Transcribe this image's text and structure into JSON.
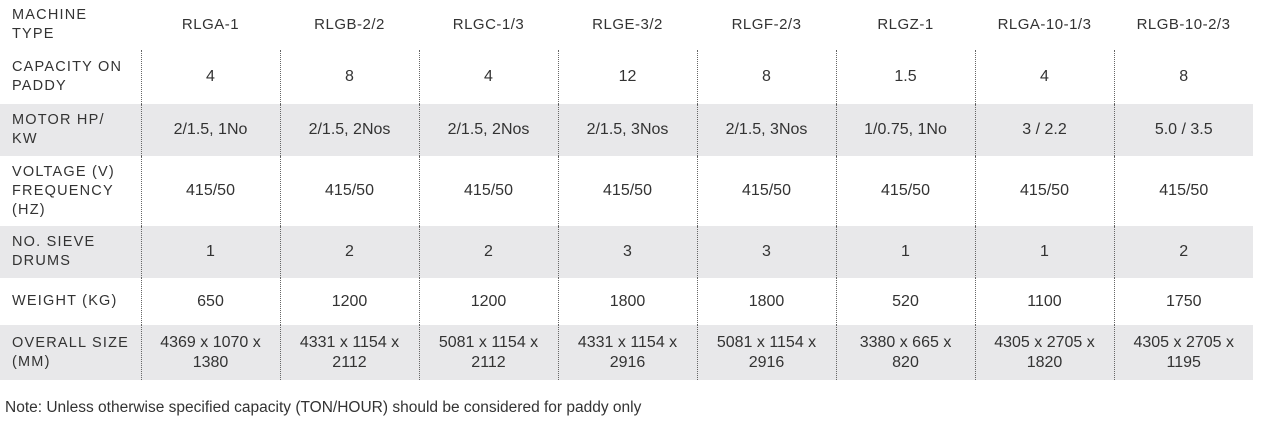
{
  "table": {
    "header": [
      "MACHINE TYPE",
      "RLGA-1",
      "RLGB-2/2",
      "RLGC-1/3",
      "RLGE-3/2",
      "RLGF-2/3",
      "RLGZ-1",
      "RLGA-10-1/3",
      "RLGB-10-2/3"
    ],
    "rows": [
      [
        "CAPACITY ON PADDY",
        "4",
        "8",
        "4",
        "12",
        "8",
        "1.5",
        "4",
        "8"
      ],
      [
        "MOTOR HP/ KW",
        "2/1.5, 1No",
        "2/1.5, 2Nos",
        "2/1.5, 2Nos",
        "2/1.5, 3Nos",
        "2/1.5, 3Nos",
        "1/0.75, 1No",
        "3 / 2.2",
        "5.0 / 3.5"
      ],
      [
        "VOLTAGE (V) FREQUENCY (HZ)",
        "415/50",
        "415/50",
        "415/50",
        "415/50",
        "415/50",
        "415/50",
        "415/50",
        "415/50"
      ],
      [
        "NO. SIEVE DRUMS",
        "1",
        "2",
        "2",
        "3",
        "3",
        "1",
        "1",
        "2"
      ],
      [
        "WEIGHT (KG)",
        "650",
        "1200",
        "1200",
        "1800",
        "1800",
        "520",
        "1100",
        "1750"
      ],
      [
        "OVERALL SIZE (MM)",
        "4369 x 1070 x 1380",
        "4331 x 1154 x 2112",
        "5081 x 1154 x 2112",
        "4331 x 1154 x 2916",
        "5081 x 1154 x 2916",
        "3380 x 665 x 820",
        "4305 x 2705 x 1820",
        "4305 x 2705 x 1195"
      ]
    ]
  },
  "note": "Note: Unless otherwise specified capacity (TON/HOUR) should be considered for paddy only"
}
